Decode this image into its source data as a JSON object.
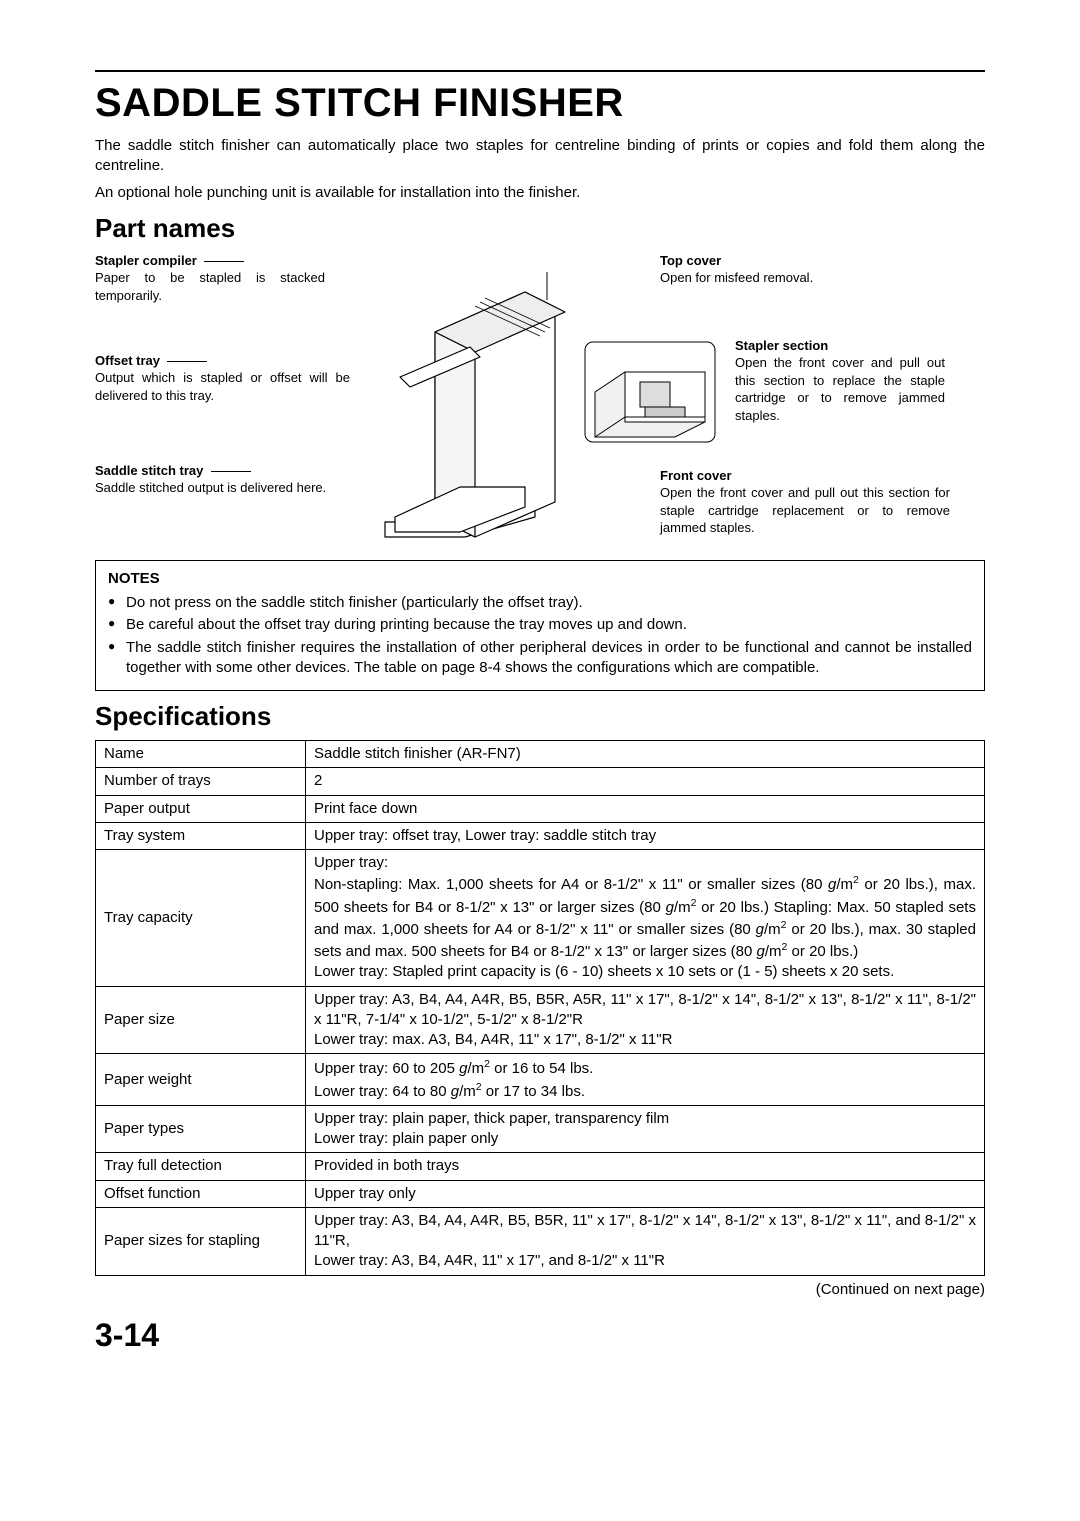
{
  "title": "SADDLE STITCH FINISHER",
  "intro1": "The saddle stitch finisher can automatically place two staples for centreline binding of prints or copies and fold them along the centreline.",
  "intro2": "An optional hole punching unit is available for installation into the finisher.",
  "partnames_heading": "Part names",
  "callouts": {
    "stapler_compiler": {
      "title": "Stapler compiler",
      "desc": "Paper to be stapled is stacked temporarily."
    },
    "offset_tray": {
      "title": "Offset tray",
      "desc": "Output which is stapled or offset will be delivered to this tray."
    },
    "saddle_tray": {
      "title": "Saddle stitch tray",
      "desc": "Saddle stitched output is delivered here."
    },
    "top_cover": {
      "title": "Top cover",
      "desc": "Open for misfeed removal."
    },
    "stapler_section": {
      "title": "Stapler section",
      "desc": "Open the front cover and pull out this section to replace the staple cartridge or to remove jammed staples."
    },
    "front_cover": {
      "title": "Front cover",
      "desc": "Open the front cover and pull out this section for staple cartridge replacement or to remove jammed staples."
    }
  },
  "notes": {
    "title": "NOTES",
    "items": [
      "Do not press on the saddle stitch finisher (particularly the offset tray).",
      "Be careful about the offset tray during printing because the tray moves up and down.",
      "The saddle stitch finisher requires the installation of other peripheral devices in order to be functional and cannot be installed together with some other devices. The table on page 8-4 shows the configurations which are compatible."
    ]
  },
  "spec_heading": "Specifications",
  "spec_rows": [
    {
      "k": "Name",
      "v": "Saddle stitch finisher (AR-FN7)"
    },
    {
      "k": "Number of trays",
      "v": "2"
    },
    {
      "k": "Paper output",
      "v": "Print face down"
    },
    {
      "k": "Tray system",
      "v": "Upper tray: offset tray, Lower tray: saddle stitch tray"
    },
    {
      "k": "Tray capacity",
      "v_html": "Upper tray:<br>Non-stapling: Max. 1,000 sheets for A4 or 8-1/2\" x 11\" or smaller sizes (80 <span class='gm2'>g</span>/m<span class='sup'>2</span> or 20 lbs.), max. 500 sheets for B4 or 8-1/2\" x 13\" or larger sizes (80 <span class='gm2'>g</span>/m<span class='sup'>2</span> or 20 lbs.) Stapling: Max. 50 stapled sets and max. 1,000 sheets for A4 or 8-1/2\" x 11\" or smaller sizes (80 <span class='gm2'>g</span>/m<span class='sup'>2</span> or 20 lbs.), max. 30 stapled sets and max. 500 sheets for B4 or 8-1/2\" x 13\" or larger sizes (80 <span class='gm2'>g</span>/m<span class='sup'>2</span> or 20 lbs.)<br>Lower tray: Stapled print capacity is (6 - 10) sheets x 10 sets or (1 - 5) sheets x 20 sets."
    },
    {
      "k": "Paper size",
      "v_html": "Upper tray: A3, B4, A4, A4R, B5, B5R, A5R, 11\" x 17\", 8-1/2\" x 14\", 8-1/2\" x 13\", 8-1/2\" x 11\", 8-1/2\" x 11\"R, 7-1/4\" x 10-1/2\", 5-1/2\" x 8-1/2\"R<br>Lower tray: max. A3, B4, A4R, 11\" x 17\", 8-1/2\" x 11\"R"
    },
    {
      "k": "Paper weight",
      "v_html": "Upper tray: 60 to 205 <span class='gm2'>g</span>/m<span class='sup'>2</span> or 16 to 54 lbs.<br>Lower tray:  64 to 80 <span class='gm2'>g</span>/m<span class='sup'>2</span> or 17 to 34 lbs."
    },
    {
      "k": "Paper types",
      "v_html": "Upper tray: plain paper, thick paper, transparency film<br>Lower tray: plain paper only"
    },
    {
      "k": "Tray full detection",
      "v": "Provided in both trays"
    },
    {
      "k": "Offset function",
      "v": "Upper tray only"
    },
    {
      "k": "Paper sizes for stapling",
      "v_html": "Upper tray: A3, B4, A4, A4R, B5, B5R, 11\" x 17\", 8-1/2\" x 14\", 8-1/2\" x 13\", 8-1/2\" x 11\", and 8-1/2\" x 11\"R,<br>Lower tray: A3, B4, A4R, 11\" x 17\", and 8-1/2\" x 11\"R"
    }
  ],
  "continued": "(Continued on next page)",
  "pagenum": "3-14",
  "colors": {
    "text": "#000000",
    "bg": "#ffffff",
    "border": "#000000"
  }
}
